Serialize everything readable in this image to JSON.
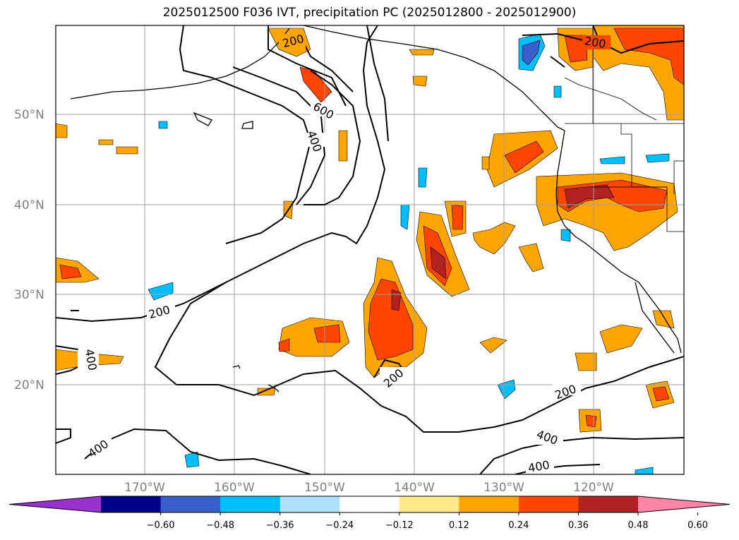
{
  "title": "2025012500 F036 IVT, precipitation PC (2025012800 - 2025012900)",
  "lat_labels": [
    "50°N",
    "40°N",
    "30°N",
    "20°N"
  ],
  "lon_labels": [
    "170°W",
    "160°W",
    "150°W",
    "140°W",
    "130°W",
    "120°W"
  ],
  "contour_labels": [
    "200",
    "600",
    "400",
    "400",
    "400",
    "200",
    "200",
    "200",
    "400",
    "400"
  ],
  "colorbar": {
    "ticks": [
      "−0.60",
      "−0.48",
      "−0.36",
      "−0.24",
      "−0.12",
      "0.12",
      "0.24",
      "0.36",
      "0.48",
      "0.60"
    ],
    "colors": [
      "#9932cc",
      "#00008b",
      "#3a5fcd",
      "#00bfff",
      "#ade2fa",
      "#ffffff",
      "#ffe98a",
      "#ffa500",
      "#ff4500",
      "#b22222",
      "#ff85a8"
    ]
  }
}
